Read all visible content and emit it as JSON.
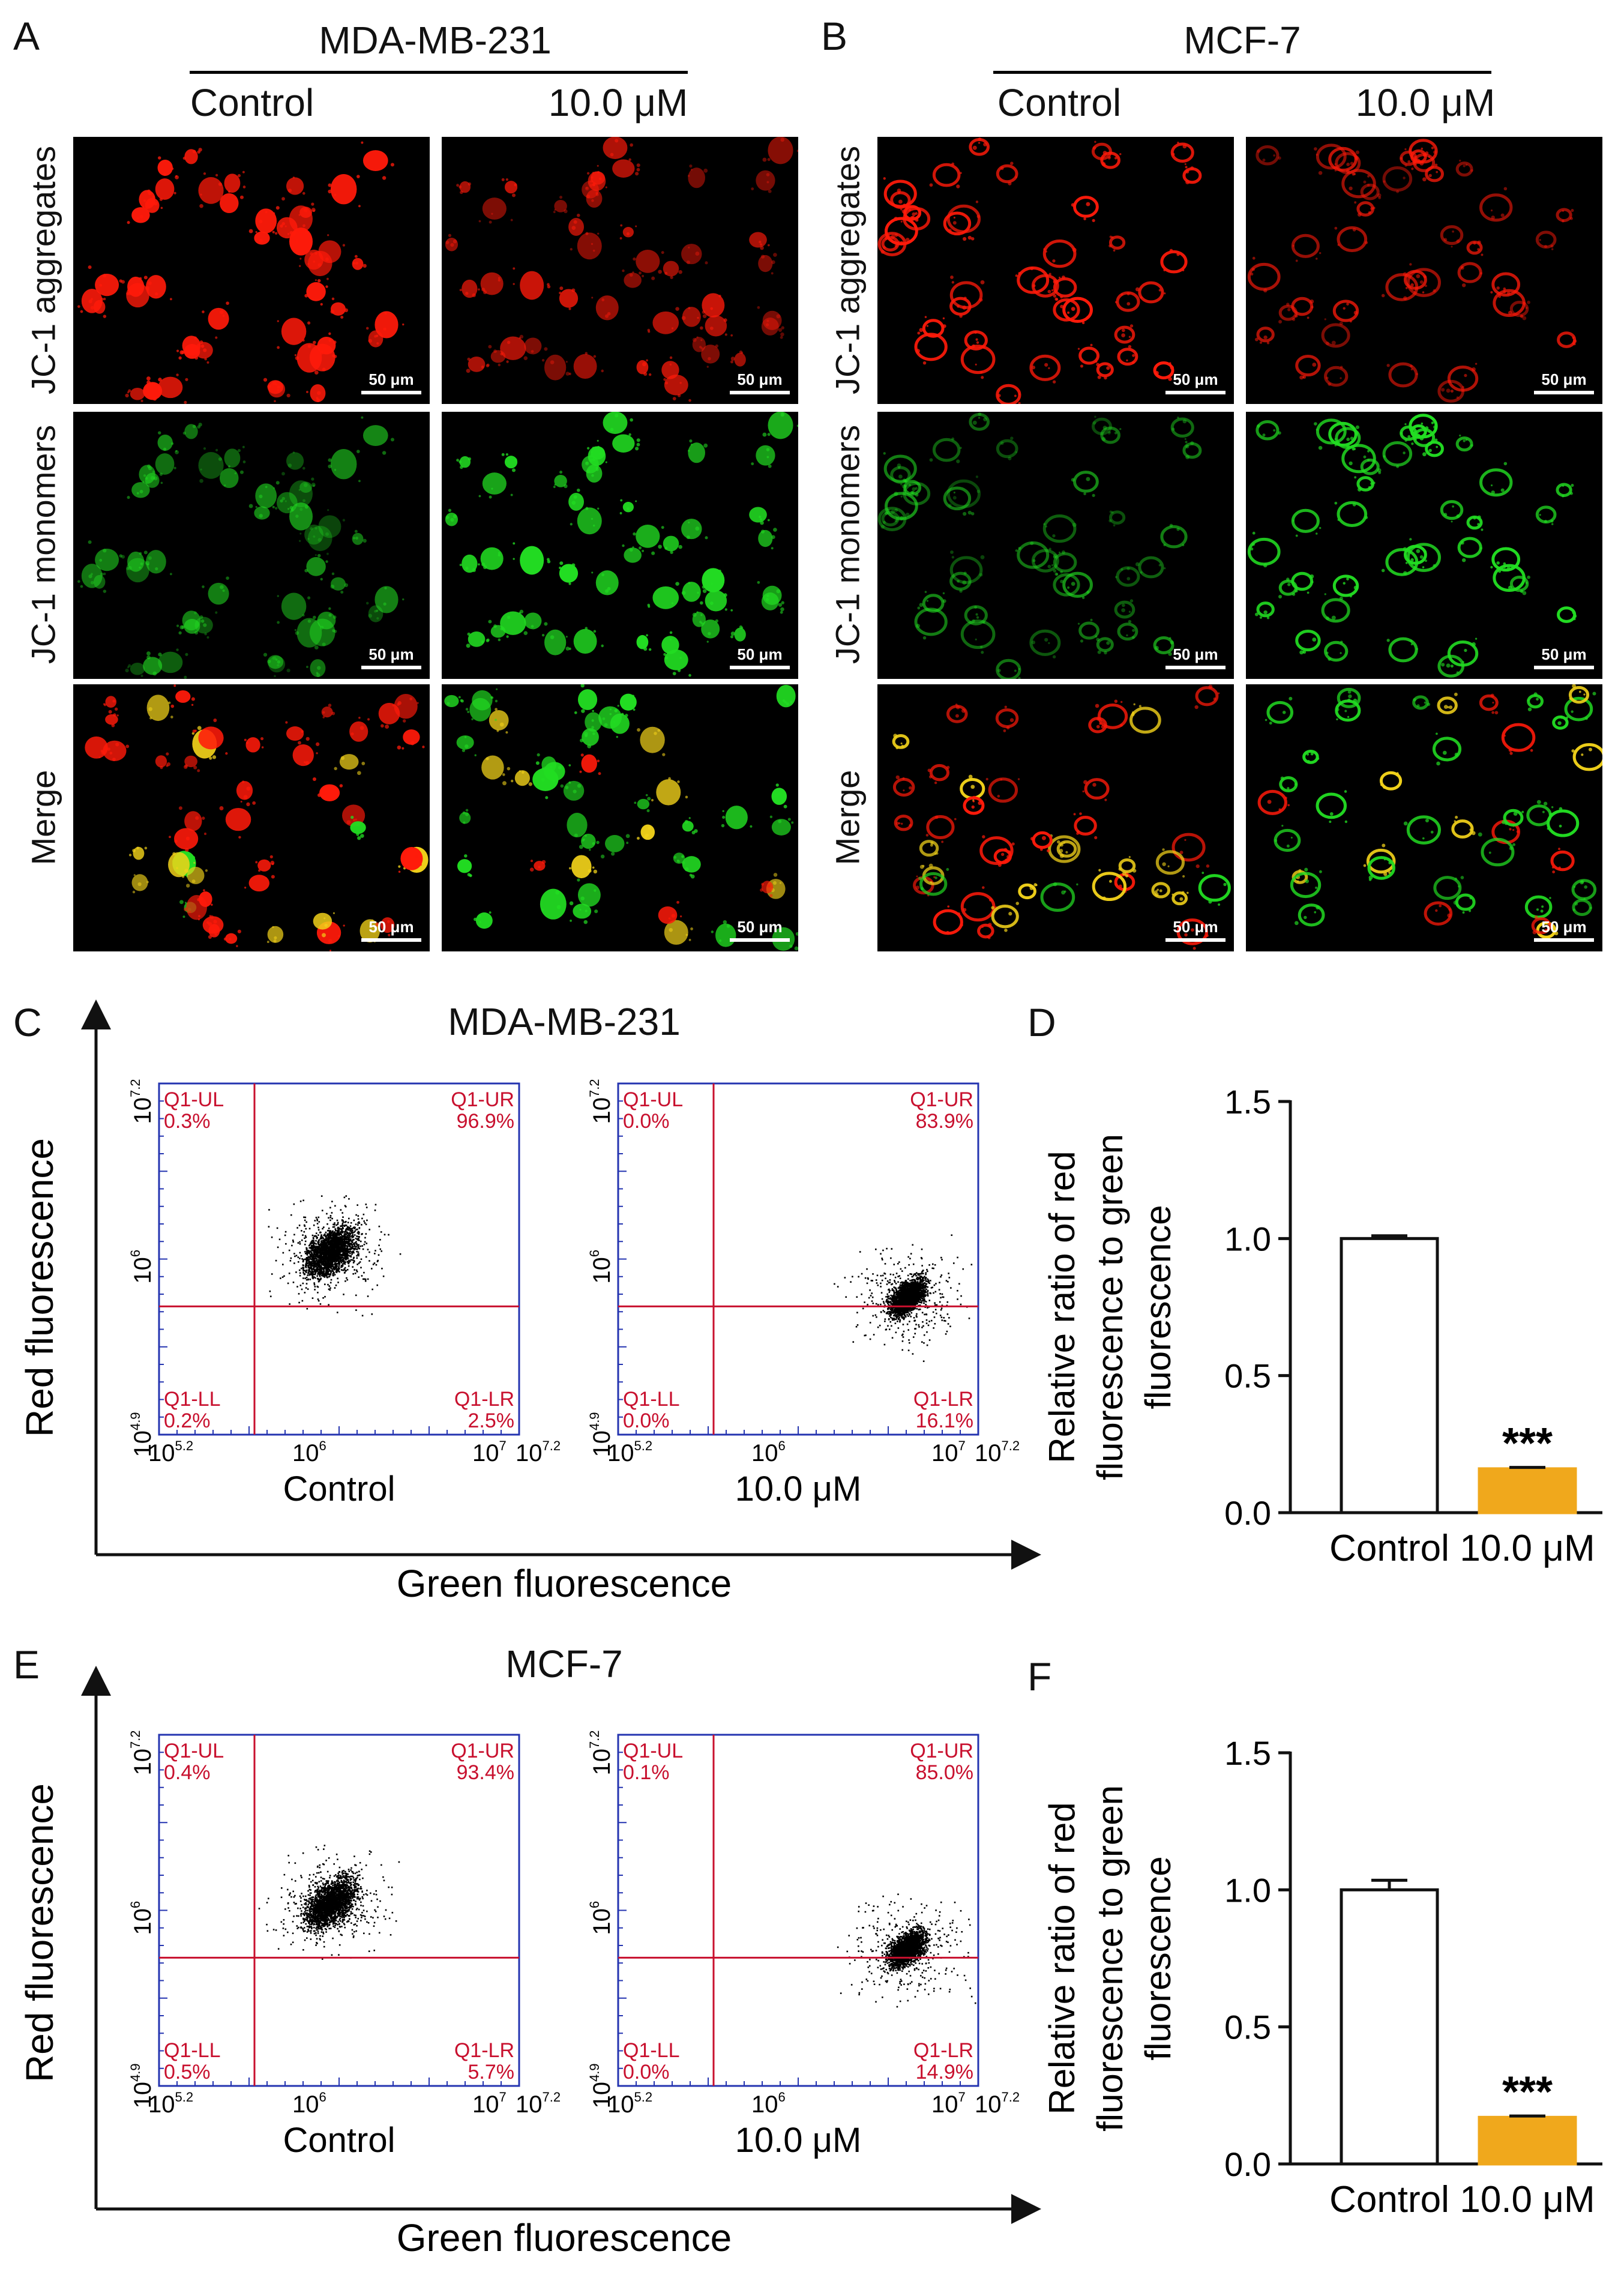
{
  "colors": {
    "accent": "#f0a81c",
    "quadrant": "#c8102e",
    "frame": "#2434b0",
    "red_signal": "#ff1a0a",
    "green_signal": "#22dd22",
    "yellow_signal": "#f2d21a"
  },
  "panel_letters": [
    "A",
    "B",
    "C",
    "D",
    "E",
    "F"
  ],
  "microscopy": {
    "row_labels": [
      "JC-1 aggregates",
      "JC-1 monomers",
      "Merge"
    ],
    "scale_label": "50 μm",
    "groups": [
      {
        "title": "MDA-MB-231",
        "conditions": [
          "Control",
          "10.0 μM"
        ]
      },
      {
        "title": "MCF-7",
        "conditions": [
          "Control",
          "10.0 μM"
        ]
      }
    ]
  },
  "flow": {
    "y_axis_title": "Red fluorescence",
    "x_axis_title": "Green fluorescence",
    "x_ticks": [
      "10",
      "10",
      "10"
    ],
    "x_tick_exps": [
      "5.2",
      "6",
      "7"
    ],
    "x_end": {
      "base": "10",
      "exp": "7.2"
    },
    "y_ticks": [
      "10",
      "10"
    ],
    "y_tick_exps": [
      "4.9",
      "6"
    ],
    "y_top": {
      "base": "10",
      "exp": "7.2"
    },
    "quadrant_names": [
      "Q1-UL",
      "Q1-UR",
      "Q1-LL",
      "Q1-LR"
    ],
    "groups": [
      {
        "title": "MDA-MB-231",
        "plots": [
          {
            "condition": "Control",
            "UL": "0.3%",
            "UR": "96.9%",
            "LL": "0.2%",
            "LR": "2.5%"
          },
          {
            "condition": "10.0 μM",
            "UL": "0.0%",
            "UR": "83.9%",
            "LL": "0.0%",
            "LR": "16.1%"
          }
        ]
      },
      {
        "title": "MCF-7",
        "plots": [
          {
            "condition": "Control",
            "UL": "0.4%",
            "UR": "93.4%",
            "LL": "0.5%",
            "LR": "5.7%"
          },
          {
            "condition": "10.0 μM",
            "UL": "0.1%",
            "UR": "85.0%",
            "LL": "0.0%",
            "LR": "14.9%"
          }
        ]
      }
    ]
  },
  "chart_data": [
    {
      "type": "bar",
      "panel": "D",
      "categories": [
        "Control",
        "10.0 μM"
      ],
      "values": [
        1.0,
        0.16
      ],
      "errors": [
        0.01,
        0.005
      ],
      "ylabel_lines": [
        "Relative ratio of  red",
        "fluorescence to green",
        "fluorescence"
      ],
      "ylim": [
        0.0,
        1.5
      ],
      "yticks": [
        "0.0",
        "0.5",
        "1.0",
        "1.5"
      ],
      "annotation": "***"
    },
    {
      "type": "bar",
      "panel": "F",
      "categories": [
        "Control",
        "10.0 μM"
      ],
      "values": [
        1.0,
        0.17
      ],
      "errors": [
        0.035,
        0.005
      ],
      "ylabel_lines": [
        "Relative ratio of  red",
        "fluorescence to green",
        "fluorescence"
      ],
      "ylim": [
        0.0,
        1.5
      ],
      "yticks": [
        "0.0",
        "0.5",
        "1.0",
        "1.5"
      ],
      "annotation": "***"
    }
  ]
}
